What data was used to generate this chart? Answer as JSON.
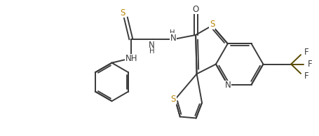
{
  "bg_color": "#ffffff",
  "line_color": "#3a3a3a",
  "S_color": "#b8860b",
  "N_color": "#3a3a3a",
  "bond_width": 1.4,
  "font_size": 8.5,
  "fig_width": 4.55,
  "fig_height": 1.94,
  "dpi": 100,
  "xlim": [
    0,
    9.1
  ],
  "ylim": [
    0,
    3.88
  ]
}
